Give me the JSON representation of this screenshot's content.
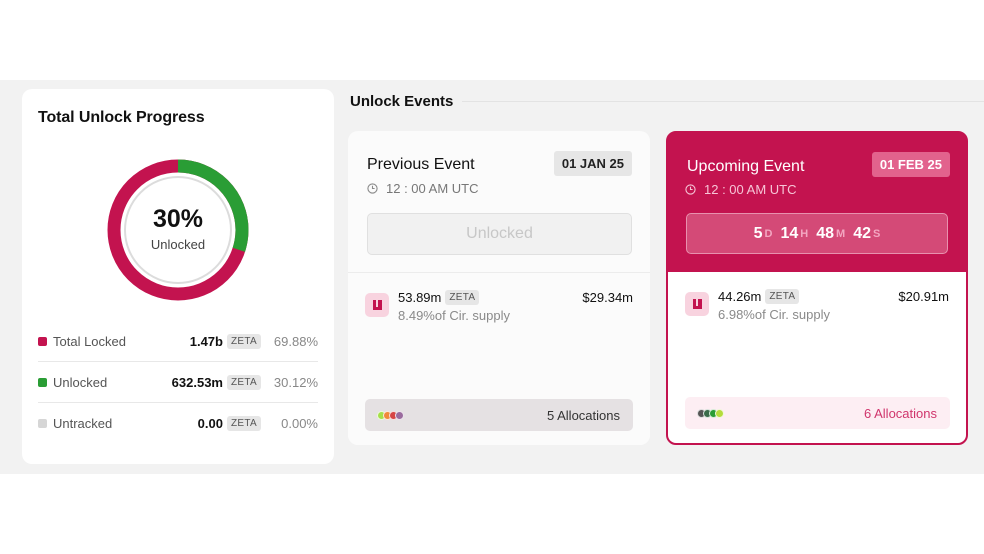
{
  "progress": {
    "title": "Total Unlock Progress",
    "percent": "30%",
    "percent_value": 30,
    "center_label": "Unlocked",
    "legend": [
      {
        "name": "Total Locked",
        "amount": "1.47b",
        "token": "ZETA",
        "percent": "69.88%",
        "color": "#c3134f"
      },
      {
        "name": "Unlocked",
        "amount": "632.53m",
        "token": "ZETA",
        "percent": "30.12%",
        "color": "#2a9d35"
      },
      {
        "name": "Untracked",
        "amount": "0.00",
        "token": "ZETA",
        "percent": "0.00%",
        "color": "#d6d6d6"
      }
    ]
  },
  "section": {
    "title": "Unlock Events"
  },
  "previous": {
    "title": "Previous Event",
    "date": "01 JAN 25",
    "time": "12 : 00 AM UTC",
    "status": "Unlocked",
    "amount": "53.89m",
    "token": "ZETA",
    "usd": "$29.34m",
    "supply": "8.49%of Cir. supply",
    "allocations": "5 Allocations",
    "dot_colors": [
      "#a5e04a",
      "#f08a3a",
      "#d64545",
      "#9a6b9e"
    ]
  },
  "upcoming": {
    "title": "Upcoming Event",
    "date": "01 FEB 25",
    "time": "12 : 00 AM UTC",
    "countdown": {
      "days": "5",
      "days_unit": "D",
      "hours": "14",
      "hours_unit": "H",
      "minutes": "48",
      "minutes_unit": "M",
      "seconds": "42",
      "seconds_unit": "S"
    },
    "amount": "44.26m",
    "token": "ZETA",
    "usd": "$20.91m",
    "supply": "6.98%of Cir. supply",
    "allocations": "6 Allocations",
    "dot_colors": [
      "#555555",
      "#3a6b4a",
      "#2a9d35",
      "#b5dc3c"
    ]
  },
  "colors": {
    "accent": "#c3134f",
    "unlocked_green": "#2a9d35"
  }
}
